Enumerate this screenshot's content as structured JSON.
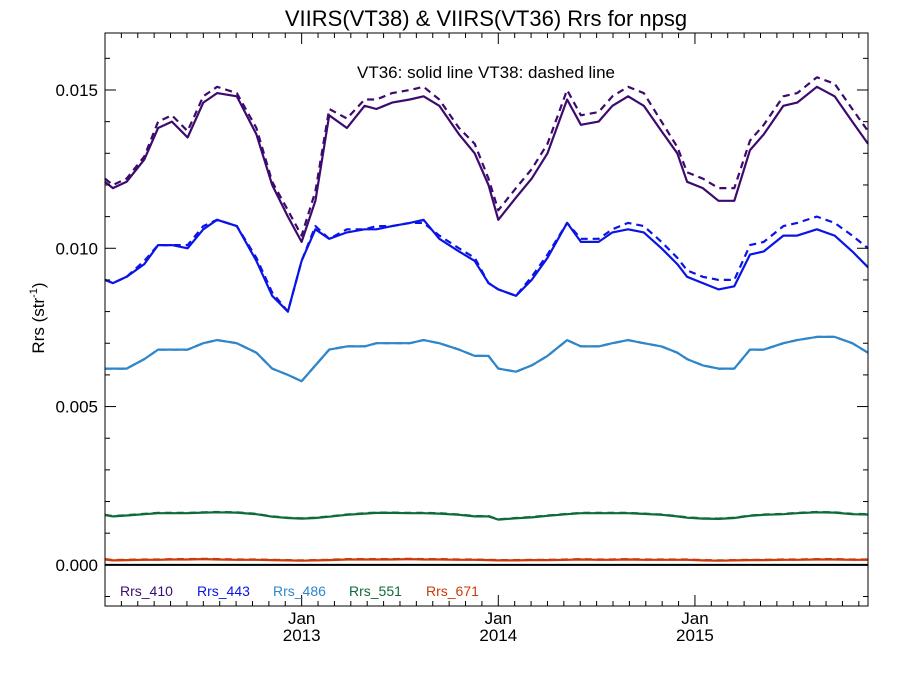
{
  "chart_data": {
    "type": "line",
    "title": "VIIRS(VT38) & VIIRS(VT36)  Rrs for npsg",
    "note": "VT36: solid line   VT38: dashed line",
    "ylabel": "Rrs (str",
    "ylabel_sup": "-1",
    "ylabel_close": ")",
    "ylim": [
      -0.0013,
      0.0168
    ],
    "xlim": [
      2012.0,
      2015.88
    ],
    "yticks": [
      0.0,
      0.005,
      0.01,
      0.015
    ],
    "ytick_labels": [
      "0.000",
      "0.005",
      "0.010",
      "0.015"
    ],
    "xticks": [
      2013.0,
      2014.0,
      2015.0
    ],
    "xtick_labels": [
      {
        "top": "Jan",
        "bottom": "2013"
      },
      {
        "top": "Jan",
        "bottom": "2014"
      },
      {
        "top": "Jan",
        "bottom": "2015"
      }
    ],
    "baseline": 0.0,
    "legend_position": "bottom-left",
    "solid_label": "VT36",
    "dashed_label": "VT38",
    "x": [
      2012.0,
      2012.04,
      2012.11,
      2012.2,
      2012.27,
      2012.34,
      2012.42,
      2012.5,
      2012.57,
      2012.67,
      2012.77,
      2012.85,
      2012.93,
      2013.0,
      2013.07,
      2013.14,
      2013.23,
      2013.32,
      2013.38,
      2013.46,
      2013.55,
      2013.62,
      2013.7,
      2013.8,
      2013.88,
      2013.95,
      2014.0,
      2014.09,
      2014.17,
      2014.25,
      2014.35,
      2014.42,
      2014.51,
      2014.58,
      2014.66,
      2014.74,
      2014.83,
      2014.91,
      2014.96,
      2015.04,
      2015.12,
      2015.2,
      2015.28,
      2015.35,
      2015.45,
      2015.52,
      2015.62,
      2015.71,
      2015.8,
      2015.88
    ],
    "series": [
      {
        "name": "Rrs_410",
        "color": "#3d0a6e",
        "solid": [
          0.0121,
          0.0119,
          0.0121,
          0.0128,
          0.0138,
          0.014,
          0.0135,
          0.0146,
          0.0149,
          0.0148,
          0.0136,
          0.012,
          0.011,
          0.0102,
          0.0115,
          0.0142,
          0.0138,
          0.0145,
          0.0144,
          0.0146,
          0.0147,
          0.0148,
          0.0145,
          0.0136,
          0.013,
          0.012,
          0.0109,
          0.0116,
          0.0122,
          0.013,
          0.0147,
          0.0139,
          0.014,
          0.0145,
          0.0148,
          0.0145,
          0.0137,
          0.013,
          0.0121,
          0.0119,
          0.0115,
          0.0115,
          0.0131,
          0.0136,
          0.0145,
          0.0146,
          0.0151,
          0.0148,
          0.014,
          0.0133
        ],
        "dashed": [
          0.0122,
          0.012,
          0.0122,
          0.0129,
          0.014,
          0.0142,
          0.0137,
          0.0148,
          0.0151,
          0.0149,
          0.0138,
          0.0121,
          0.0112,
          0.0104,
          0.0118,
          0.0144,
          0.0141,
          0.0147,
          0.0147,
          0.0149,
          0.015,
          0.0151,
          0.0147,
          0.0138,
          0.0133,
          0.0122,
          0.0112,
          0.0119,
          0.0125,
          0.0133,
          0.015,
          0.0142,
          0.0143,
          0.0148,
          0.0151,
          0.0149,
          0.014,
          0.0132,
          0.0124,
          0.0122,
          0.0119,
          0.0119,
          0.0134,
          0.0139,
          0.0148,
          0.0149,
          0.0154,
          0.0152,
          0.0144,
          0.0137
        ]
      },
      {
        "name": "Rrs_443",
        "color": "#0a14e6",
        "solid": [
          0.009,
          0.0089,
          0.0091,
          0.0095,
          0.0101,
          0.0101,
          0.01,
          0.0106,
          0.0109,
          0.0107,
          0.0096,
          0.0085,
          0.008,
          0.0096,
          0.0106,
          0.0103,
          0.0105,
          0.0106,
          0.0106,
          0.0107,
          0.0108,
          0.0109,
          0.0103,
          0.0099,
          0.0096,
          0.0089,
          0.0087,
          0.0085,
          0.009,
          0.0097,
          0.0108,
          0.0102,
          0.0102,
          0.0105,
          0.0106,
          0.0105,
          0.01,
          0.0095,
          0.0091,
          0.0089,
          0.0087,
          0.0088,
          0.0098,
          0.0099,
          0.0104,
          0.0104,
          0.0106,
          0.0104,
          0.0099,
          0.0094
        ],
        "dashed": [
          0.009,
          0.0089,
          0.0091,
          0.0096,
          0.0101,
          0.0101,
          0.0101,
          0.0107,
          0.0109,
          0.0107,
          0.0097,
          0.0086,
          0.008,
          0.0096,
          0.0107,
          0.0103,
          0.0106,
          0.0106,
          0.0107,
          0.0107,
          0.0108,
          0.0108,
          0.0104,
          0.01,
          0.0097,
          0.0089,
          0.0087,
          0.0085,
          0.0091,
          0.0098,
          0.0108,
          0.0103,
          0.0103,
          0.0106,
          0.0108,
          0.0107,
          0.0102,
          0.0097,
          0.0093,
          0.0091,
          0.009,
          0.009,
          0.0101,
          0.0102,
          0.0107,
          0.0108,
          0.011,
          0.0108,
          0.0104,
          0.01
        ]
      },
      {
        "name": "Rrs_486",
        "color": "#2f86c9",
        "solid": [
          0.0062,
          0.0062,
          0.0062,
          0.0065,
          0.0068,
          0.0068,
          0.0068,
          0.007,
          0.0071,
          0.007,
          0.0067,
          0.0062,
          0.006,
          0.0058,
          0.0063,
          0.0068,
          0.0069,
          0.0069,
          0.007,
          0.007,
          0.007,
          0.0071,
          0.007,
          0.0068,
          0.0066,
          0.0066,
          0.0062,
          0.0061,
          0.0063,
          0.0066,
          0.0071,
          0.0069,
          0.0069,
          0.007,
          0.0071,
          0.007,
          0.0069,
          0.0067,
          0.0065,
          0.0063,
          0.0062,
          0.0062,
          0.0068,
          0.0068,
          0.007,
          0.0071,
          0.0072,
          0.0072,
          0.007,
          0.0067
        ],
        "dashed": [
          0.0062,
          0.0062,
          0.0062,
          0.0065,
          0.0068,
          0.0068,
          0.0068,
          0.007,
          0.0071,
          0.007,
          0.0067,
          0.0062,
          0.006,
          0.0058,
          0.0063,
          0.0068,
          0.0069,
          0.0069,
          0.007,
          0.007,
          0.007,
          0.0071,
          0.007,
          0.0068,
          0.0066,
          0.0066,
          0.0062,
          0.0061,
          0.0063,
          0.0066,
          0.0071,
          0.0069,
          0.0069,
          0.007,
          0.0071,
          0.007,
          0.0069,
          0.0067,
          0.0065,
          0.0063,
          0.0062,
          0.0062,
          0.0068,
          0.0068,
          0.007,
          0.0071,
          0.0072,
          0.0072,
          0.007,
          0.0067
        ]
      },
      {
        "name": "Rrs_551",
        "color": "#0f6b38",
        "solid": [
          0.00157,
          0.00153,
          0.00156,
          0.0016,
          0.00163,
          0.00163,
          0.00163,
          0.00165,
          0.00166,
          0.00165,
          0.0016,
          0.00152,
          0.00148,
          0.00146,
          0.00148,
          0.00152,
          0.00158,
          0.00162,
          0.00164,
          0.00164,
          0.00163,
          0.00163,
          0.00162,
          0.00158,
          0.00153,
          0.00153,
          0.00143,
          0.00147,
          0.0015,
          0.00155,
          0.0016,
          0.00163,
          0.00163,
          0.00163,
          0.00163,
          0.00161,
          0.00158,
          0.00153,
          0.00149,
          0.00146,
          0.00145,
          0.00148,
          0.00155,
          0.00158,
          0.0016,
          0.00163,
          0.00166,
          0.00165,
          0.0016,
          0.00159
        ],
        "dashed": [
          0.00158,
          0.00154,
          0.00157,
          0.00161,
          0.00164,
          0.00164,
          0.00164,
          0.00166,
          0.00167,
          0.00166,
          0.00161,
          0.00153,
          0.00149,
          0.00147,
          0.00149,
          0.00153,
          0.00159,
          0.00163,
          0.00165,
          0.00165,
          0.00164,
          0.00164,
          0.00163,
          0.00159,
          0.00154,
          0.00154,
          0.00144,
          0.00148,
          0.00151,
          0.00156,
          0.00161,
          0.00164,
          0.00164,
          0.00164,
          0.00164,
          0.00162,
          0.00159,
          0.00154,
          0.0015,
          0.00147,
          0.00146,
          0.00149,
          0.00156,
          0.00159,
          0.00161,
          0.00164,
          0.00167,
          0.00166,
          0.00161,
          0.0016
        ]
      },
      {
        "name": "Rrs_671",
        "color": "#cc3a0a",
        "solid": [
          0.00017,
          0.00014,
          0.00015,
          0.00016,
          0.00016,
          0.00017,
          0.00017,
          0.00018,
          0.00017,
          0.00016,
          0.00016,
          0.00015,
          0.00014,
          0.00013,
          0.00014,
          0.00015,
          0.00017,
          0.00017,
          0.00017,
          0.00017,
          0.00018,
          0.00017,
          0.00017,
          0.00016,
          0.00016,
          0.00015,
          0.00014,
          0.00014,
          0.00015,
          0.00015,
          0.00016,
          0.00017,
          0.00016,
          0.00016,
          0.00017,
          0.00016,
          0.00016,
          0.00016,
          0.00016,
          0.00014,
          0.00013,
          0.00014,
          0.00015,
          0.00015,
          0.00016,
          0.00016,
          0.00017,
          0.00017,
          0.00016,
          0.00016
        ],
        "dashed": [
          0.00018,
          0.00015,
          0.00016,
          0.00017,
          0.00017,
          0.00018,
          0.00018,
          0.00019,
          0.00018,
          0.00017,
          0.00017,
          0.00016,
          0.00015,
          0.00014,
          0.00015,
          0.00016,
          0.00018,
          0.00018,
          0.00018,
          0.00018,
          0.00019,
          0.00018,
          0.00018,
          0.00017,
          0.00017,
          0.00016,
          0.00015,
          0.00015,
          0.00016,
          0.00016,
          0.00017,
          0.00018,
          0.00017,
          0.00017,
          0.00018,
          0.00017,
          0.00017,
          0.00017,
          0.00017,
          0.00015,
          0.00014,
          0.00015,
          0.00016,
          0.00016,
          0.00017,
          0.00017,
          0.00018,
          0.00018,
          0.00017,
          0.00017
        ]
      }
    ]
  }
}
